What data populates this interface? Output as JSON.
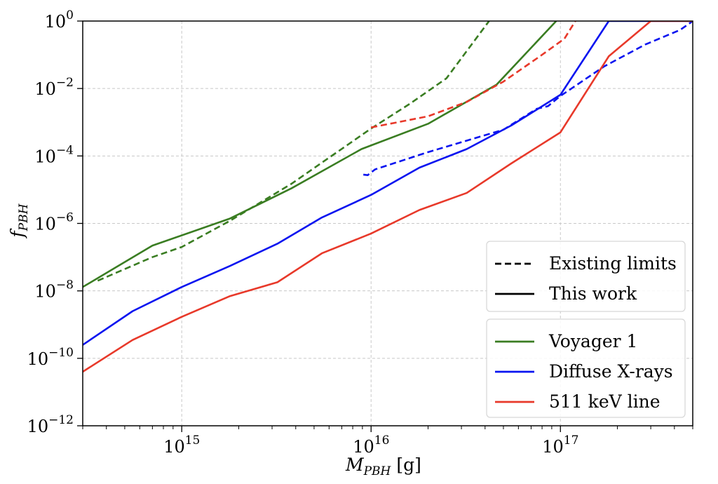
{
  "chart_data": {
    "type": "line",
    "title": "",
    "xlabel": {
      "main": "M",
      "sub": "PBH",
      "unit": "[g]"
    },
    "ylabel": {
      "main": "f",
      "sub": "PBH"
    },
    "x_scale": "log",
    "y_scale": "log",
    "xlim": [
      300000000000000.0,
      5e+17
    ],
    "ylim": [
      1e-12,
      1.0
    ],
    "x_ticks": [
      {
        "base": "10",
        "exp": "15",
        "value": 1000000000000000.0
      },
      {
        "base": "10",
        "exp": "16",
        "value": 1e+16
      },
      {
        "base": "10",
        "exp": "17",
        "value": 1e+17
      }
    ],
    "y_ticks": [
      {
        "base": "10",
        "exp": "0",
        "value": 1
      },
      {
        "base": "10",
        "exp": "−2",
        "value": 0.01
      },
      {
        "base": "10",
        "exp": "−4",
        "value": 0.0001
      },
      {
        "base": "10",
        "exp": "−6",
        "value": 1e-06
      },
      {
        "base": "10",
        "exp": "−8",
        "value": 1e-08
      },
      {
        "base": "10",
        "exp": "−10",
        "value": 1e-10
      },
      {
        "base": "10",
        "exp": "−12",
        "value": 1e-12
      }
    ],
    "grid": true,
    "legend_placement": "lower-right",
    "legend_style": [
      {
        "label": "Existing limits",
        "dash": true,
        "color": "#000000"
      },
      {
        "label": "This work",
        "dash": false,
        "color": "#000000"
      }
    ],
    "legend_colors": [
      {
        "label": "Voyager 1",
        "color": "#3a7d22"
      },
      {
        "label": "Diffuse X-rays",
        "color": "#0a14f0"
      },
      {
        "label": "511 keV line",
        "color": "#e8392a"
      }
    ],
    "series": [
      {
        "group": "Voyager 1",
        "kind": "This work",
        "color": "#3a7d22",
        "dashed": false,
        "points": [
          [
            300000000000000.0,
            1.3e-08
          ],
          [
            700000000000000.0,
            2.2e-07
          ],
          [
            1800000000000000.0,
            1.4e-06
          ],
          [
            3800000000000000.0,
            1.1e-05
          ],
          [
            8900000000000000.0,
            0.00016
          ],
          [
            2e+16,
            0.0009
          ],
          [
            4.6e+16,
            0.013
          ],
          [
            9.5e+16,
            1.0
          ]
        ]
      },
      {
        "group": "Voyager 1",
        "kind": "Existing limits",
        "color": "#3a7d22",
        "dashed": true,
        "points": [
          [
            360000000000000.0,
            2e-08
          ],
          [
            700000000000000.0,
            1e-07
          ],
          [
            1000000000000000.0,
            2e-07
          ],
          [
            1800000000000000.0,
            1.2e-06
          ],
          [
            3800000000000000.0,
            1.5e-05
          ],
          [
            1e+16,
            0.00065
          ],
          [
            1.6e+16,
            0.0035
          ],
          [
            2.5e+16,
            0.02
          ],
          [
            4.2e+16,
            1.0
          ]
        ]
      },
      {
        "group": "Diffuse X-rays",
        "kind": "This work",
        "color": "#0a14f0",
        "dashed": false,
        "points": [
          [
            300000000000000.0,
            2.5e-10
          ],
          [
            550000000000000.0,
            2.5e-09
          ],
          [
            1000000000000000.0,
            1.3e-08
          ],
          [
            1800000000000000.0,
            5.5e-08
          ],
          [
            3200000000000000.0,
            2.5e-07
          ],
          [
            5500000000000000.0,
            1.5e-06
          ],
          [
            1e+16,
            7e-06
          ],
          [
            1.8e+16,
            4.5e-05
          ],
          [
            3.2e+16,
            0.00016
          ],
          [
            5.5e+16,
            0.0008
          ],
          [
            1e+17,
            0.0065
          ],
          [
            1.8e+17,
            1.0
          ],
          [
            5e+17,
            1.0
          ]
        ]
      },
      {
        "group": "Diffuse X-rays",
        "kind": "Existing limits",
        "color": "#0a14f0",
        "dashed": true,
        "points": [
          [
            9100000000000000.0,
            2.8e-05
          ],
          [
            9600000000000000.0,
            2.7e-05
          ],
          [
            1.05e+16,
            4e-05
          ],
          [
            2e+16,
            0.00013
          ],
          [
            5e+16,
            0.0006
          ],
          [
            7.5e+16,
            0.0025
          ],
          [
            8.6e+16,
            0.003
          ],
          [
            1e+17,
            0.006
          ],
          [
            1.7e+17,
            0.045
          ],
          [
            2.8e+17,
            0.2
          ],
          [
            4.3e+17,
            0.55
          ],
          [
            5e+17,
            1.0
          ]
        ]
      },
      {
        "group": "511 keV line",
        "kind": "This work",
        "color": "#e8392a",
        "dashed": false,
        "points": [
          [
            300000000000000.0,
            4e-11
          ],
          [
            550000000000000.0,
            3.5e-10
          ],
          [
            1000000000000000.0,
            1.7e-09
          ],
          [
            1800000000000000.0,
            7e-09
          ],
          [
            3200000000000000.0,
            1.8e-08
          ],
          [
            5500000000000000.0,
            1.3e-07
          ],
          [
            1e+16,
            5e-07
          ],
          [
            1.8e+16,
            2.5e-06
          ],
          [
            3.2e+16,
            8e-06
          ],
          [
            5.5e+16,
            6e-05
          ],
          [
            1e+17,
            0.0005
          ],
          [
            1.8e+17,
            0.09
          ],
          [
            3e+17,
            1.0
          ],
          [
            5e+17,
            1.0
          ]
        ]
      },
      {
        "group": "511 keV line",
        "kind": "Existing limits",
        "color": "#e8392a",
        "dashed": true,
        "points": [
          [
            1e+16,
            0.0007
          ],
          [
            2e+16,
            0.0015
          ],
          [
            3.2e+16,
            0.004
          ],
          [
            5e+16,
            0.016
          ],
          [
            8e+16,
            0.1
          ],
          [
            1.05e+17,
            0.3
          ],
          [
            1.2e+17,
            1.0
          ]
        ]
      }
    ]
  }
}
